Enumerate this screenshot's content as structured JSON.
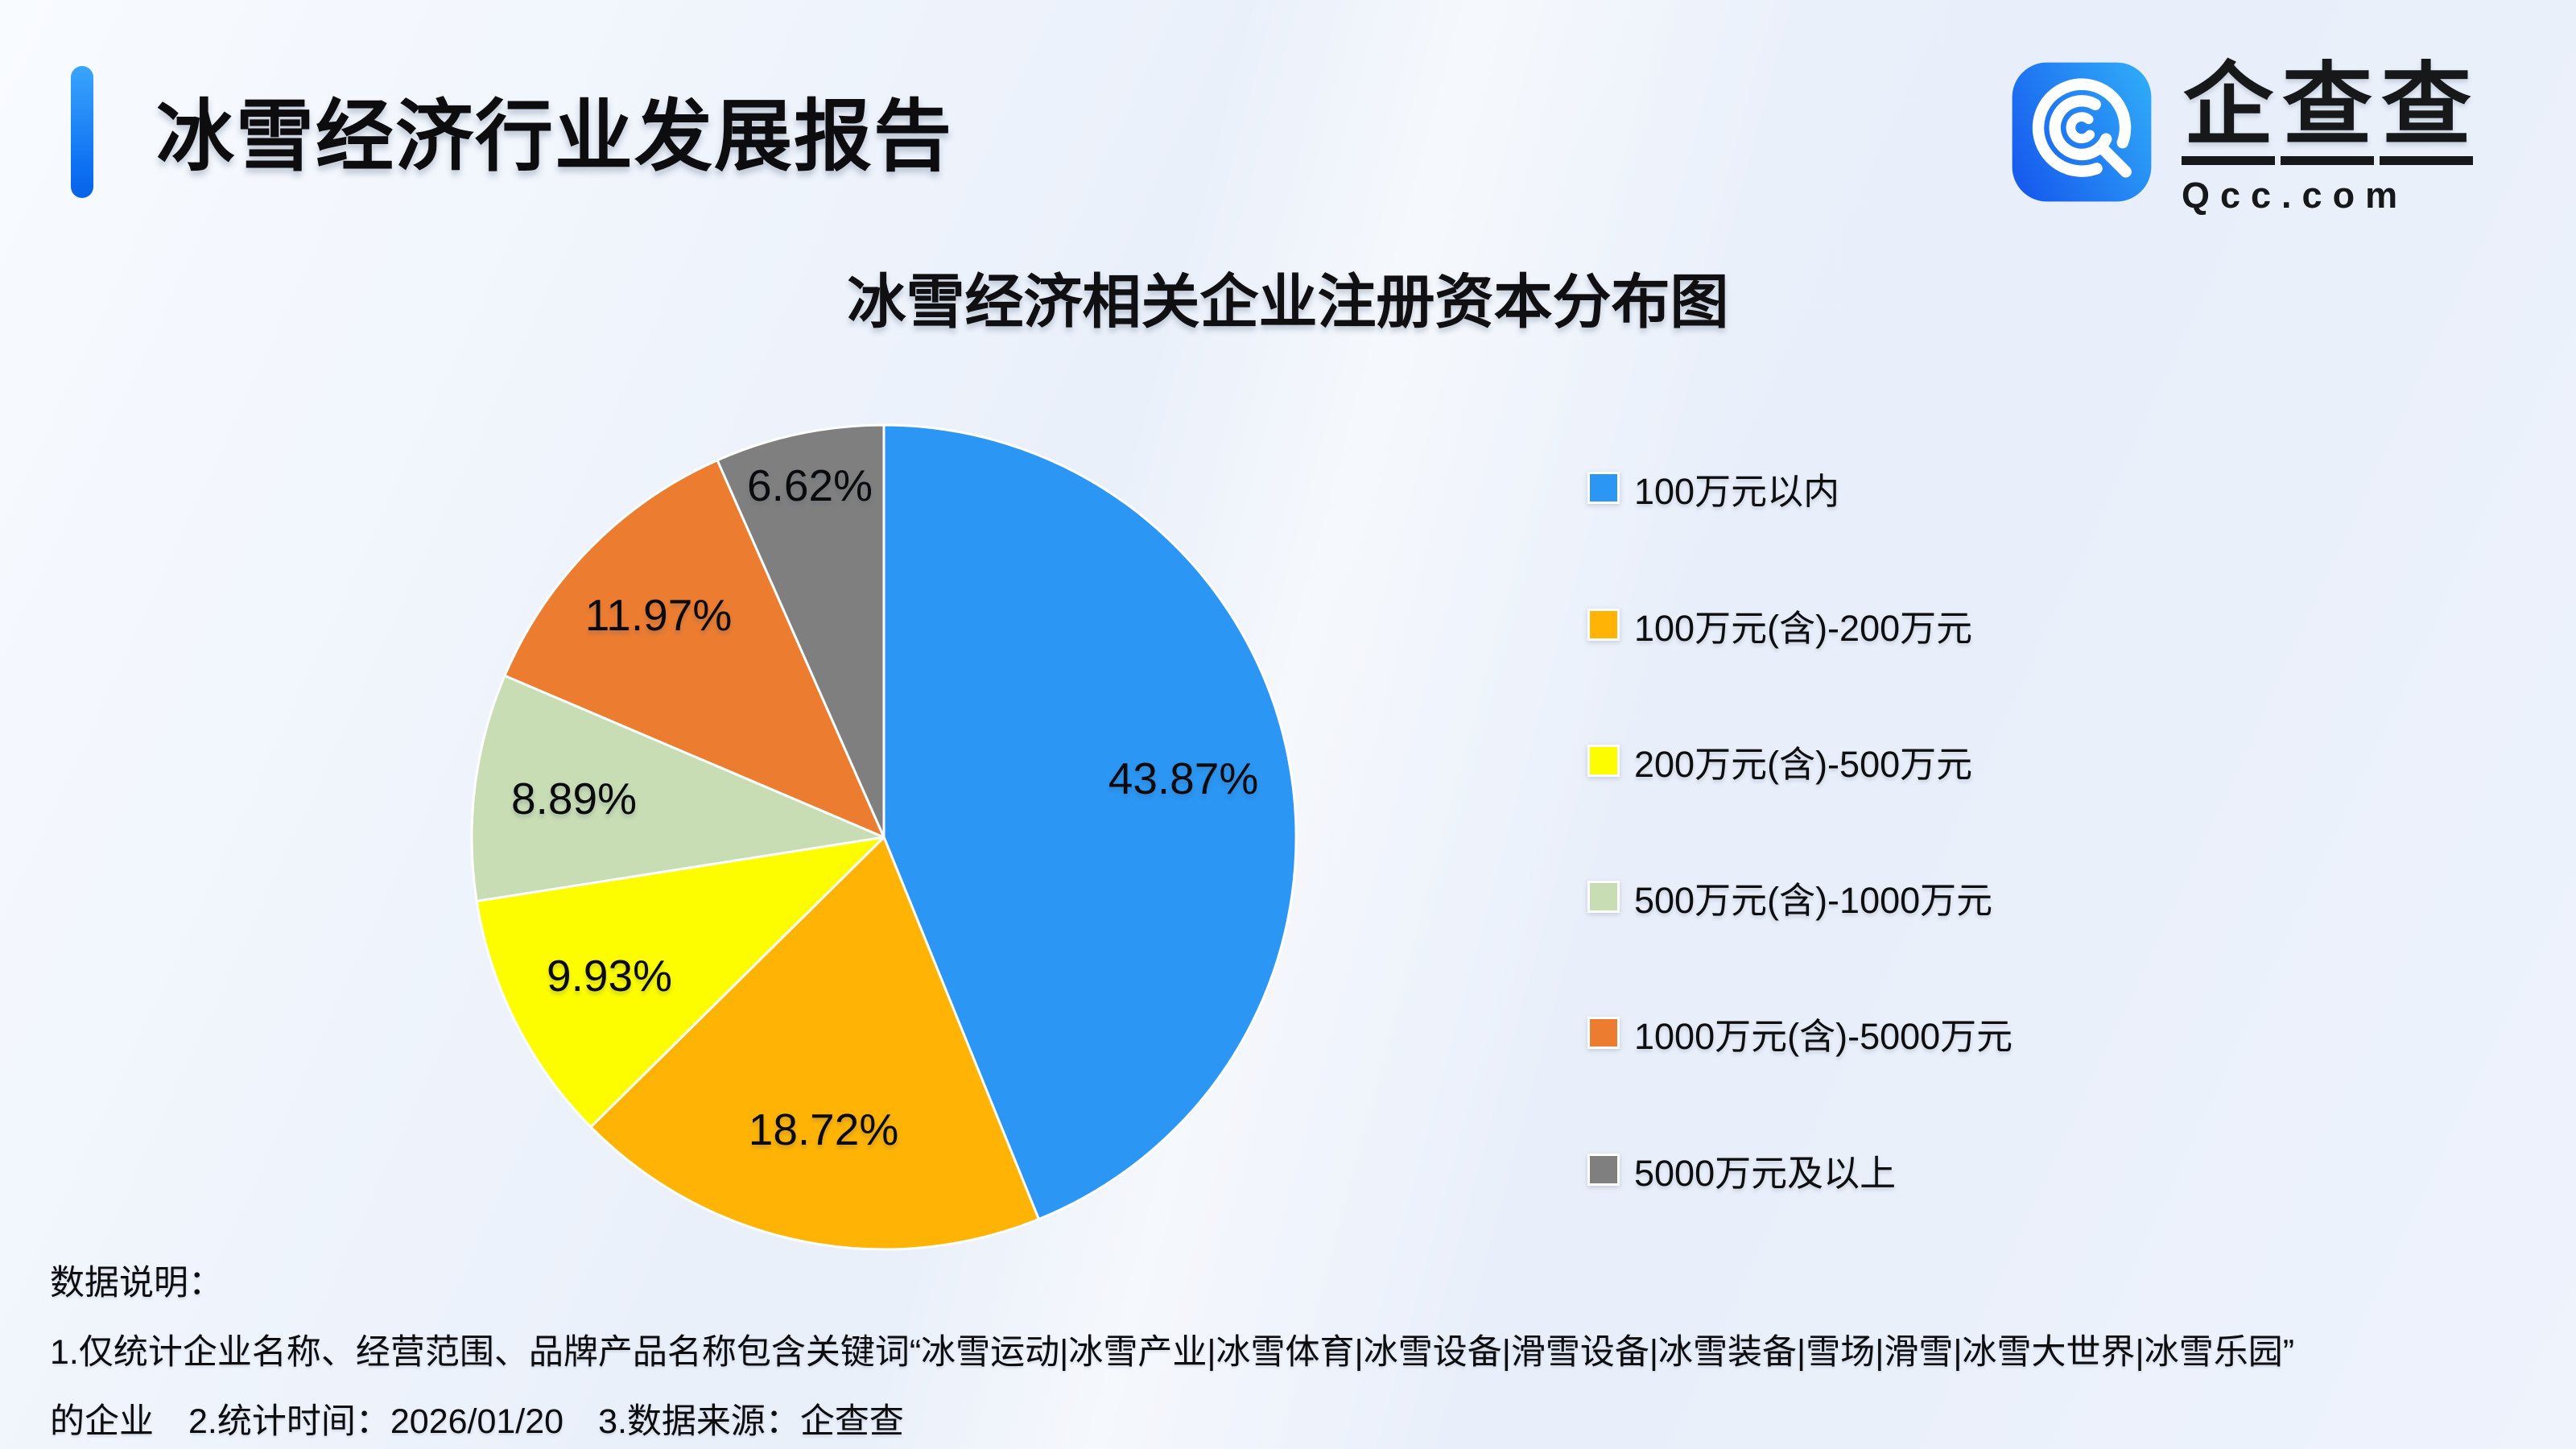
{
  "page": {
    "report_title": "冰雪经济行业发展报告"
  },
  "logo": {
    "chars": [
      "企",
      "查",
      "查"
    ],
    "domain": "Qcc.com",
    "icon": "qcc-magnifier-icon",
    "brand_blue": "#1d64f0"
  },
  "chart_data": {
    "type": "pie",
    "title": "冰雪经济相关企业注册资本分布图",
    "unit": "percent",
    "total": 100,
    "start_angle": "top",
    "direction": "clockwise",
    "legend_position": "right",
    "slices": [
      {
        "label": "100万元以内",
        "value": 43.87,
        "display": "43.87%",
        "color": "#2B96F3"
      },
      {
        "label": "100万元(含)-200万元",
        "value": 18.72,
        "display": "18.72%",
        "color": "#FFB405"
      },
      {
        "label": "200万元(含)-500万元",
        "value": 9.93,
        "display": "9.93%",
        "color": "#FDFD00"
      },
      {
        "label": "500万元(含)-1000万元",
        "value": 8.89,
        "display": "8.89%",
        "color": "#C8DDB4"
      },
      {
        "label": "1000万元(含)-5000万元",
        "value": 11.97,
        "display": "11.97%",
        "color": "#EC7C30"
      },
      {
        "label": "5000万元及以上",
        "value": 6.62,
        "display": "6.62%",
        "color": "#7F7F7F"
      }
    ]
  },
  "footer": {
    "heading": "数据说明：",
    "line1": "1.仅统计企业名称、经营范围、品牌产品名称包含关键词“冰雪运动|冰雪产业|冰雪体育|冰雪设备|滑雪设备|冰雪装备|雪场|滑雪|冰雪大世界|冰雪乐园”",
    "line2": "的企业　2.统计时间：2026/01/20　3.数据来源：企查查"
  }
}
